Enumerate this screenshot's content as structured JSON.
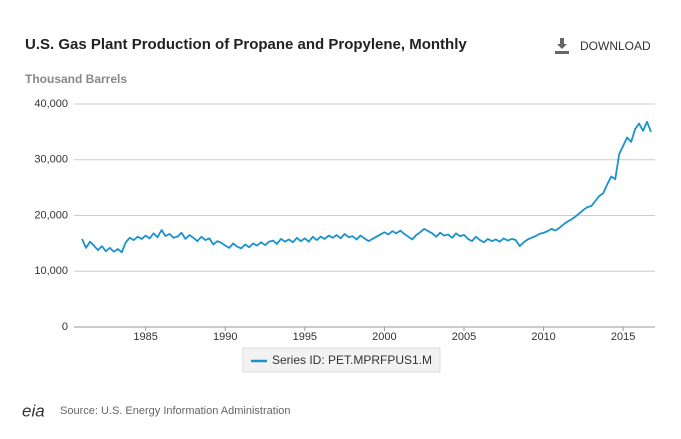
{
  "chart_data": {
    "type": "line",
    "title": "U.S. Gas Plant Production of Propane and Propylene, Monthly",
    "y_label": "Thousand Barrels",
    "download": "DOWNLOAD",
    "source": "Source: U.S. Energy Information Administration",
    "xlim": [
      1981,
      2017
    ],
    "xticks": [
      1985,
      1990,
      1995,
      2000,
      2005,
      2010,
      2015
    ],
    "ylim": [
      0,
      40000
    ],
    "yticks": [
      0,
      {
        "value": 10000,
        "label": "10,000"
      },
      {
        "value": 20000,
        "label": "20,000"
      },
      {
        "value": 30000,
        "label": "30,000"
      },
      {
        "value": 40000,
        "label": "40,000"
      }
    ],
    "grid": true,
    "x": [
      1981,
      1981.25,
      1981.5,
      1981.75,
      1982,
      1982.25,
      1982.5,
      1982.75,
      1983,
      1983.25,
      1983.5,
      1983.75,
      1984,
      1984.25,
      1984.5,
      1984.75,
      1985,
      1985.25,
      1985.5,
      1985.75,
      1986,
      1986.25,
      1986.5,
      1986.75,
      1987,
      1987.25,
      1987.5,
      1987.75,
      1988,
      1988.25,
      1988.5,
      1988.75,
      1989,
      1989.25,
      1989.5,
      1989.75,
      1990,
      1990.25,
      1990.5,
      1990.75,
      1991,
      1991.25,
      1991.5,
      1991.75,
      1992,
      1992.25,
      1992.5,
      1992.75,
      1993,
      1993.25,
      1993.5,
      1993.75,
      1994,
      1994.25,
      1994.5,
      1994.75,
      1995,
      1995.25,
      1995.5,
      1995.75,
      1996,
      1996.25,
      1996.5,
      1996.75,
      1997,
      1997.25,
      1997.5,
      1997.75,
      1998,
      1998.25,
      1998.5,
      1998.75,
      1999,
      1999.25,
      1999.5,
      1999.75,
      2000,
      2000.25,
      2000.5,
      2000.75,
      2001,
      2001.25,
      2001.5,
      2001.75,
      2002,
      2002.25,
      2002.5,
      2002.75,
      2003,
      2003.25,
      2003.5,
      2003.75,
      2004,
      2004.25,
      2004.5,
      2004.75,
      2005,
      2005.25,
      2005.5,
      2005.75,
      2006,
      2006.25,
      2006.5,
      2006.75,
      2007,
      2007.25,
      2007.5,
      2007.75,
      2008,
      2008.25,
      2008.5,
      2008.75,
      2009,
      2009.25,
      2009.5,
      2009.75,
      2010,
      2010.25,
      2010.5,
      2010.75,
      2011,
      2011.25,
      2011.5,
      2011.75,
      2012,
      2012.25,
      2012.5,
      2012.75,
      2013,
      2013.25,
      2013.5,
      2013.75,
      2014,
      2014.25,
      2014.5,
      2014.75,
      2015,
      2015.25,
      2015.5,
      2015.75,
      2016,
      2016.25,
      2016.5,
      2016.75
    ],
    "series": [
      {
        "name": "Series ID: PET.MPRFPUS1.M",
        "color": "#1a92cc",
        "values": [
          15800,
          14200,
          15300,
          14600,
          13800,
          14500,
          13600,
          14200,
          13500,
          14000,
          13400,
          15200,
          16000,
          15600,
          16200,
          15800,
          16400,
          15900,
          16800,
          16100,
          17400,
          16300,
          16700,
          16000,
          16200,
          16900,
          15800,
          16500,
          16000,
          15400,
          16200,
          15600,
          15900,
          14800,
          15400,
          15100,
          14600,
          14200,
          15000,
          14400,
          14100,
          14800,
          14300,
          15000,
          14600,
          15200,
          14700,
          15300,
          15500,
          14900,
          15800,
          15300,
          15700,
          15200,
          16000,
          15400,
          15900,
          15300,
          16200,
          15600,
          16200,
          15800,
          16400,
          16000,
          16500,
          15900,
          16700,
          16100,
          16300,
          15700,
          16400,
          15900,
          15400,
          15800,
          16200,
          16600,
          17000,
          16600,
          17200,
          16800,
          17300,
          16700,
          16200,
          15700,
          16500,
          17000,
          17600,
          17200,
          16800,
          16200,
          16900,
          16400,
          16600,
          16000,
          16800,
          16300,
          16500,
          15800,
          15400,
          16200,
          15600,
          15200,
          15800,
          15400,
          15700,
          15300,
          15900,
          15500,
          15800,
          15600,
          14500,
          15200,
          15700,
          16000,
          16300,
          16700,
          16900,
          17200,
          17600,
          17300,
          17800,
          18400,
          18900,
          19300,
          19800,
          20400,
          21000,
          21500,
          21700,
          22600,
          23500,
          24000,
          25600,
          27000,
          26500,
          31000,
          32500,
          34000,
          33200,
          35500,
          36500,
          35200,
          36800,
          35000
        ]
      }
    ]
  }
}
